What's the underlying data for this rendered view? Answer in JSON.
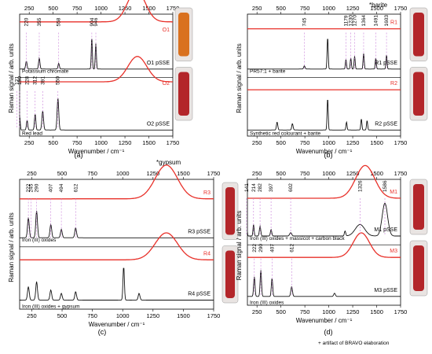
{
  "labels": {
    "wavenumber": "Wavenumber / cm⁻¹",
    "raman": "Raman signal / arb. units",
    "barite_note": "*barite",
    "gypsum_note": "*gypsum",
    "artifact_note": "+ artifact of BRAVO elaboration"
  },
  "colors": {
    "red": "#e8312a",
    "black": "#111111",
    "guide": "#c77bd8",
    "vial_glass": "#e9e4e2"
  },
  "chart_data": [
    {
      "id": "a",
      "type": "line",
      "caption": "(a)",
      "xlim": [
        150,
        1750
      ],
      "xticks": [
        250,
        500,
        750,
        1000,
        1250,
        1500,
        1750
      ],
      "series": [
        {
          "name": "O1",
          "color": "red",
          "peaks": [
            [
              1370,
              1.0,
              130
            ]
          ],
          "base": 0.45
        },
        {
          "name": "O1 pSSE",
          "color": "black",
          "peaks": [
            [
              220,
              0.25,
              10
            ],
            [
              355,
              0.35,
              10
            ],
            [
              558,
              0.18,
              10
            ],
            [
              904,
              1.0,
              8
            ],
            [
              946,
              0.8,
              8
            ]
          ]
        },
        {
          "name": "O2",
          "color": "red",
          "peaks": [
            [
              1380,
              0.8,
              140
            ]
          ],
          "base": 0.25
        },
        {
          "name": "O2 pSSE",
          "color": "black",
          "peaks": [
            [
              121,
              0.5,
              8
            ],
            [
              150,
              0.45,
              8
            ],
            [
              228,
              0.3,
              10
            ],
            [
              312,
              0.5,
              10
            ],
            [
              391,
              0.6,
              12
            ],
            [
              550,
              1.0,
              12
            ]
          ]
        }
      ],
      "annotations": {
        "O1": [
          "220",
          "355",
          "558",
          "904",
          "946"
        ],
        "O2": [
          "121",
          "150",
          "228",
          "312",
          "391",
          "550"
        ]
      },
      "sample_labels": [
        "Potassium chromate",
        "Red lead"
      ]
    },
    {
      "id": "b",
      "type": "line",
      "caption": "(b)",
      "xlim": [
        150,
        1750
      ],
      "xticks": [
        250,
        500,
        750,
        1000,
        1250,
        1500,
        1750
      ],
      "series": [
        {
          "name": "R1",
          "color": "red"
        },
        {
          "name": "R1 pSSE",
          "color": "black",
          "peaks": [
            [
              745,
              0.1,
              10
            ],
            [
              988,
              1.0,
              8
            ],
            [
              1179,
              0.3,
              8
            ],
            [
              1230,
              0.35,
              8
            ],
            [
              1270,
              0.4,
              8
            ],
            [
              1364,
              0.5,
              8
            ],
            [
              1491,
              0.35,
              8
            ],
            [
              1603,
              0.45,
              8
            ]
          ]
        },
        {
          "name": "R2",
          "color": "red"
        },
        {
          "name": "R2 pSSE",
          "color": "black",
          "peaks": [
            [
              460,
              0.25,
              10
            ],
            [
              620,
              0.2,
              10
            ],
            [
              988,
              1.0,
              8
            ],
            [
              1185,
              0.25,
              8
            ],
            [
              1340,
              0.35,
              8
            ],
            [
              1400,
              0.3,
              8
            ]
          ]
        }
      ],
      "annotations": {
        "R1": [
          "745",
          "1179",
          "1230",
          "1270",
          "1364",
          "1491",
          "1603"
        ]
      },
      "sample_labels": [
        "PR57:1 + barite",
        "Synthetic red colourant + barite"
      ]
    },
    {
      "id": "c",
      "type": "line",
      "caption": "(c)",
      "xlim": [
        150,
        1750
      ],
      "xticks": [
        250,
        500,
        750,
        1000,
        1250,
        1500,
        1750
      ],
      "series": [
        {
          "name": "R3",
          "color": "red",
          "peaks": [
            [
              1360,
              1.0,
              130
            ]
          ]
        },
        {
          "name": "R3 pSSE",
          "color": "black",
          "peaks": [
            [
              222,
              0.6,
              10
            ],
            [
              290,
              0.8,
              10
            ],
            [
              407,
              0.4,
              10
            ],
            [
              494,
              0.25,
              10
            ],
            [
              612,
              0.3,
              10
            ]
          ]
        },
        {
          "name": "R4",
          "color": "red",
          "peaks": [
            [
              1360,
              0.8,
              130
            ]
          ]
        },
        {
          "name": "R4 pSSE",
          "color": "black",
          "peaks": [
            [
              222,
              0.4,
              10
            ],
            [
              290,
              0.55,
              10
            ],
            [
              407,
              0.3,
              10
            ],
            [
              494,
              0.2,
              10
            ],
            [
              612,
              0.25,
              10
            ],
            [
              1008,
              1.0,
              8
            ],
            [
              1135,
              0.2,
              10
            ]
          ]
        }
      ],
      "annotations": {
        "R3": [
          "222",
          "245",
          "290",
          "407",
          "494",
          "612"
        ]
      },
      "sample_labels": [
        "Iron (III) oxides",
        "Iron (III) oxides + gypsum"
      ]
    },
    {
      "id": "d",
      "type": "line",
      "caption": "(d)",
      "xlim": [
        150,
        1750
      ],
      "xticks": [
        250,
        500,
        750,
        1000,
        1250,
        1500,
        1750
      ],
      "series": [
        {
          "name": "M1",
          "color": "red",
          "peaks": [
            [
              1380,
              1.0,
              140
            ]
          ]
        },
        {
          "name": "M1 pSSE",
          "color": "black",
          "peaks": [
            [
              141,
              0.45,
              8
            ],
            [
              214,
              0.35,
              8
            ],
            [
              282,
              0.3,
              10
            ],
            [
              397,
              0.2,
              10
            ],
            [
              602,
              0.1,
              15
            ],
            [
              1170,
              0.15,
              10
            ],
            [
              1326,
              0.35,
              70
            ],
            [
              1586,
              1.0,
              40
            ]
          ]
        },
        {
          "name": "M3",
          "color": "red",
          "peaks": [
            [
              1340,
              0.75,
              120
            ]
          ]
        },
        {
          "name": "M3 pSSE",
          "color": "black",
          "peaks": [
            [
              222,
              0.6,
              10
            ],
            [
              290,
              0.8,
              10
            ],
            [
              407,
              0.55,
              10
            ],
            [
              612,
              0.3,
              12
            ],
            [
              1060,
              0.1,
              12
            ]
          ]
        }
      ],
      "annotations": {
        "M1": [
          "141",
          "214",
          "282",
          "397",
          "602",
          "1326",
          "1586"
        ],
        "M3": [
          "222",
          "290",
          "407",
          "612"
        ]
      },
      "sample_labels": [
        "Iron (III) oxides + massicot + carbon black",
        "Iron (III) oxides"
      ]
    }
  ]
}
